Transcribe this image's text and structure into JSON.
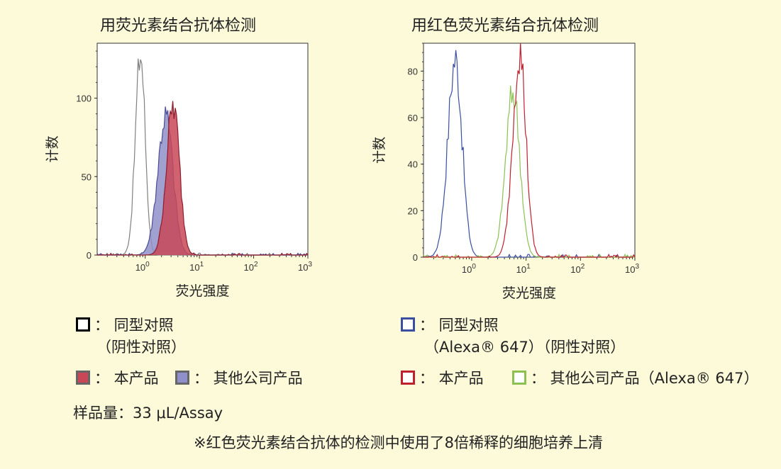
{
  "chart_data": [
    {
      "type": "area",
      "title": "用荧光素结合抗体检测",
      "xlabel": "荧光强度",
      "ylabel": "计数",
      "x_scale": "log",
      "xlim": [
        0.13,
        1000
      ],
      "ylim": [
        0,
        135
      ],
      "x_ticks": [
        {
          "base": "10",
          "exp": "0",
          "value": 1
        },
        {
          "base": "10",
          "exp": "1",
          "value": 10
        },
        {
          "base": "10",
          "exp": "2",
          "value": 100
        },
        {
          "base": "10",
          "exp": "3",
          "value": 1000
        }
      ],
      "y_ticks": [
        0,
        50,
        100
      ],
      "series": [
        {
          "name": "同型对照（阴性对照）",
          "color": "#808080",
          "fill": "none",
          "peak_x": 0.82,
          "peak_y": 128,
          "width": 0.09
        },
        {
          "name": "其他公司产品",
          "color": "#4b4c94",
          "fill": "#8f8fc9",
          "peak_x": 2.4,
          "peak_y": 89,
          "width": 0.14
        },
        {
          "name": "本产品",
          "color": "#8e1d2c",
          "fill": "#c94858",
          "peak_x": 3.3,
          "peak_y": 95,
          "width": 0.12
        }
      ]
    },
    {
      "type": "line",
      "title": "用红色荧光素结合抗体检测",
      "xlabel": "荧光强度",
      "ylabel": "计数",
      "x_scale": "log",
      "xlim": [
        0.13,
        1000
      ],
      "ylim": [
        0,
        92
      ],
      "x_ticks": [
        {
          "base": "10",
          "exp": "0",
          "value": 1
        },
        {
          "base": "10",
          "exp": "1",
          "value": 10
        },
        {
          "base": "10",
          "exp": "2",
          "value": 100
        },
        {
          "base": "10",
          "exp": "3",
          "value": 1000
        }
      ],
      "y_ticks": [
        0,
        20,
        40,
        60,
        80
      ],
      "series": [
        {
          "name": "同型对照（Alexa® 647）（阴性对照）",
          "color": "#3a4fa0",
          "peak_x": 0.5,
          "peak_y": 85,
          "width": 0.13
        },
        {
          "name": "其他公司产品（Alexa® 647）",
          "color": "#8cc152",
          "peak_x": 5.8,
          "peak_y": 71,
          "width": 0.13
        },
        {
          "name": "本产品",
          "color": "#c0202e",
          "peak_x": 7.6,
          "peak_y": 89,
          "width": 0.12
        }
      ]
    }
  ],
  "left_legend": {
    "isotype_label": "： 同型对照",
    "isotype_sub": "（阴性对照）",
    "this_product": "： 本产品",
    "other_company": "： 其他公司产品",
    "isotype_color": "#000000",
    "this_color": "#c94858",
    "other_color": "#8f8fc9"
  },
  "right_legend": {
    "isotype_label": "： 同型对照",
    "isotype_sub": "（Alexa® 647）（阴性对照）",
    "this_product": "： 本产品",
    "other_company": "： 其他公司产品（Alexa® 647）",
    "isotype_color": "#3a4fa0",
    "this_color": "#c0202e",
    "other_color": "#8cc152"
  },
  "sample_amount": "样品量：33 μL/Assay",
  "footnote": "※红色荧光素结合抗体的检测中使用了8倍稀释的细胞培养上清"
}
